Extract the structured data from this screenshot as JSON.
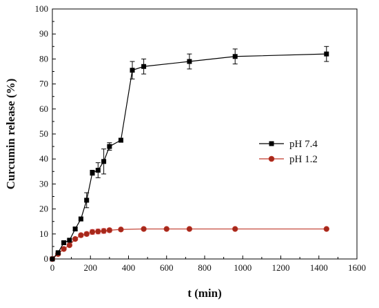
{
  "chart_data": {
    "type": "line",
    "xlabel": "t (min)",
    "ylabel": "Curcumin release (%)",
    "xlim": [
      0,
      1600
    ],
    "ylim": [
      0,
      100
    ],
    "xticks": [
      0,
      200,
      400,
      600,
      800,
      1000,
      1200,
      1400,
      1600
    ],
    "yticks": [
      0,
      10,
      20,
      30,
      40,
      50,
      60,
      70,
      80,
      90,
      100
    ],
    "grid": false,
    "legend_position": "middle-right",
    "series": [
      {
        "name": "pH 7.4",
        "color": "#000000",
        "marker": "square",
        "points": [
          {
            "x": 0,
            "y": 0,
            "err": 0
          },
          {
            "x": 30,
            "y": 2.5,
            "err": 0.3
          },
          {
            "x": 60,
            "y": 6.5,
            "err": 0.5
          },
          {
            "x": 90,
            "y": 7.5,
            "err": 0.5
          },
          {
            "x": 120,
            "y": 12.0,
            "err": 0.6
          },
          {
            "x": 150,
            "y": 16.0,
            "err": 0.8
          },
          {
            "x": 180,
            "y": 23.5,
            "err": 3.0
          },
          {
            "x": 210,
            "y": 34.5,
            "err": 1.0
          },
          {
            "x": 240,
            "y": 35.5,
            "err": 3.0
          },
          {
            "x": 270,
            "y": 39.0,
            "err": 5.0
          },
          {
            "x": 300,
            "y": 45.0,
            "err": 1.5
          },
          {
            "x": 360,
            "y": 47.5,
            "err": 0.8
          },
          {
            "x": 420,
            "y": 75.5,
            "err": 3.5
          },
          {
            "x": 480,
            "y": 77.0,
            "err": 3.0
          },
          {
            "x": 720,
            "y": 79.0,
            "err": 3.0
          },
          {
            "x": 960,
            "y": 81.0,
            "err": 3.0
          },
          {
            "x": 1440,
            "y": 82.0,
            "err": 3.0
          }
        ]
      },
      {
        "name": "pH 1.2",
        "color": "#c0392b",
        "marker_fill": "#a5281b",
        "marker": "circle",
        "points": [
          {
            "x": 0,
            "y": 0,
            "err": 0
          },
          {
            "x": 30,
            "y": 2.0,
            "err": 0.3
          },
          {
            "x": 60,
            "y": 4.0,
            "err": 0.5
          },
          {
            "x": 90,
            "y": 5.5,
            "err": 0.5
          },
          {
            "x": 120,
            "y": 8.0,
            "err": 0.6
          },
          {
            "x": 150,
            "y": 9.5,
            "err": 0.7
          },
          {
            "x": 180,
            "y": 10.0,
            "err": 0.8
          },
          {
            "x": 210,
            "y": 10.8,
            "err": 1.0
          },
          {
            "x": 240,
            "y": 11.0,
            "err": 1.0
          },
          {
            "x": 270,
            "y": 11.2,
            "err": 1.0
          },
          {
            "x": 300,
            "y": 11.5,
            "err": 0.8
          },
          {
            "x": 360,
            "y": 11.8,
            "err": 0.5
          },
          {
            "x": 480,
            "y": 12.0,
            "err": 0.5
          },
          {
            "x": 600,
            "y": 12.0,
            "err": 0.4
          },
          {
            "x": 720,
            "y": 12.0,
            "err": 0.4
          },
          {
            "x": 960,
            "y": 12.0,
            "err": 0.4
          },
          {
            "x": 1440,
            "y": 12.0,
            "err": 0.4
          }
        ]
      }
    ]
  }
}
